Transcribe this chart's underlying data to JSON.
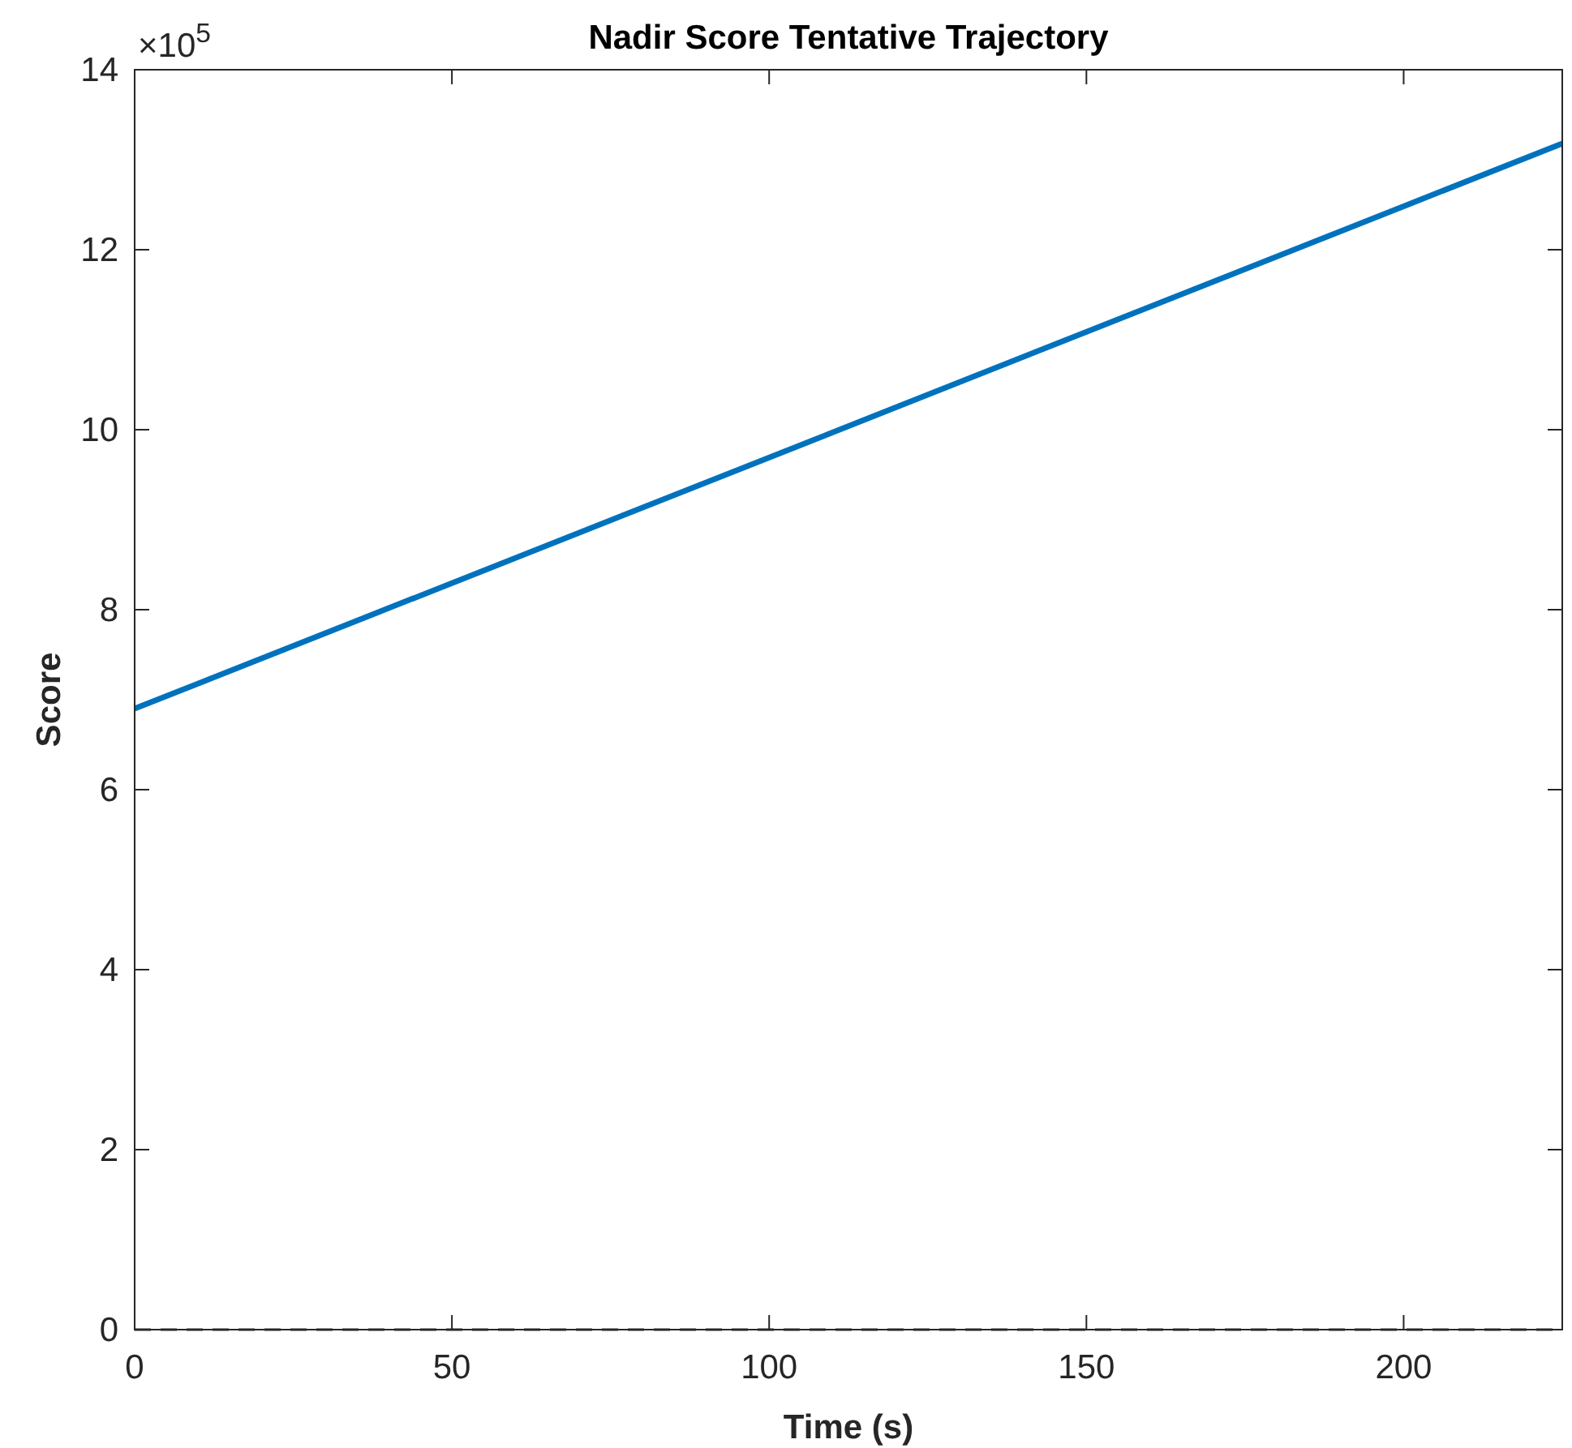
{
  "chart_data": {
    "type": "line",
    "title": "Nadir Score Tentative Trajectory",
    "xlabel": "Time (s)",
    "ylabel": "Score",
    "annotations": [
      "×10$^{5}$"
    ],
    "x": [
      0,
      225
    ],
    "series": [
      {
        "color": "#0072bd",
        "values": [
          6.9,
          13.18
        ]
      }
    ],
    "xlim": [
      0,
      225
    ],
    "xticks": [
      0,
      50,
      100,
      150,
      200
    ],
    "ylim": [
      0,
      14
    ],
    "yticks": [
      0,
      2,
      4,
      6,
      8,
      10,
      12,
      14
    ],
    "ref_lines": [
      {
        "axis": "y",
        "value": 0,
        "color": "#262626",
        "line_style": "dashed"
      }
    ],
    "grid": false,
    "marker": "none",
    "line_style": "solid"
  }
}
